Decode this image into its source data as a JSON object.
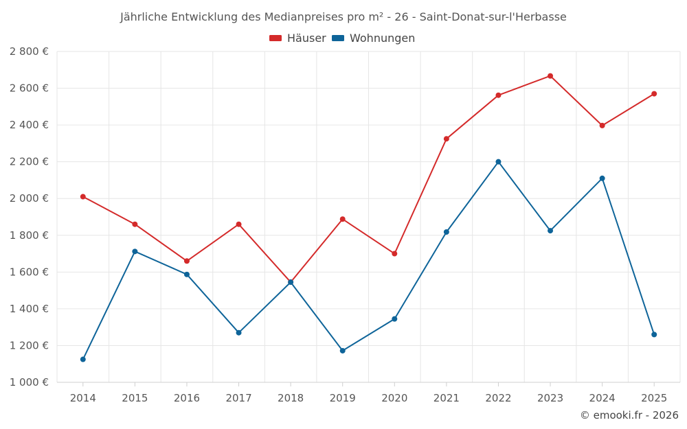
{
  "chart_data": {
    "type": "line",
    "title": "Jährliche Entwicklung des Medianpreises pro m² - 26 - Saint-Donat-sur-l'Herbasse",
    "categories": [
      "2014",
      "2015",
      "2016",
      "2017",
      "2018",
      "2019",
      "2020",
      "2021",
      "2022",
      "2023",
      "2024",
      "2025"
    ],
    "series": [
      {
        "name": "Häuser",
        "color": "#d42a2a",
        "values": [
          2010,
          1860,
          1660,
          1860,
          1545,
          1888,
          1700,
          2325,
          2562,
          2667,
          2397,
          2570
        ]
      },
      {
        "name": "Wohnungen",
        "color": "#0e6499",
        "values": [
          1125,
          1712,
          1587,
          1270,
          1545,
          1172,
          1345,
          1818,
          2200,
          1825,
          2110,
          1260
        ]
      }
    ],
    "ylim": [
      1000,
      2800
    ],
    "yticks": [
      1000,
      1200,
      1400,
      1600,
      1800,
      2000,
      2200,
      2400,
      2600,
      2800
    ],
    "ytick_labels": [
      "1 000 €",
      "1 200 €",
      "1 400 €",
      "1 600 €",
      "1 800 €",
      "2 000 €",
      "2 200 €",
      "2 400 €",
      "2 600 €",
      "2 800 €"
    ],
    "legend_position": "top-center",
    "grid": true
  },
  "credit": "© emooki.fr - 2026"
}
